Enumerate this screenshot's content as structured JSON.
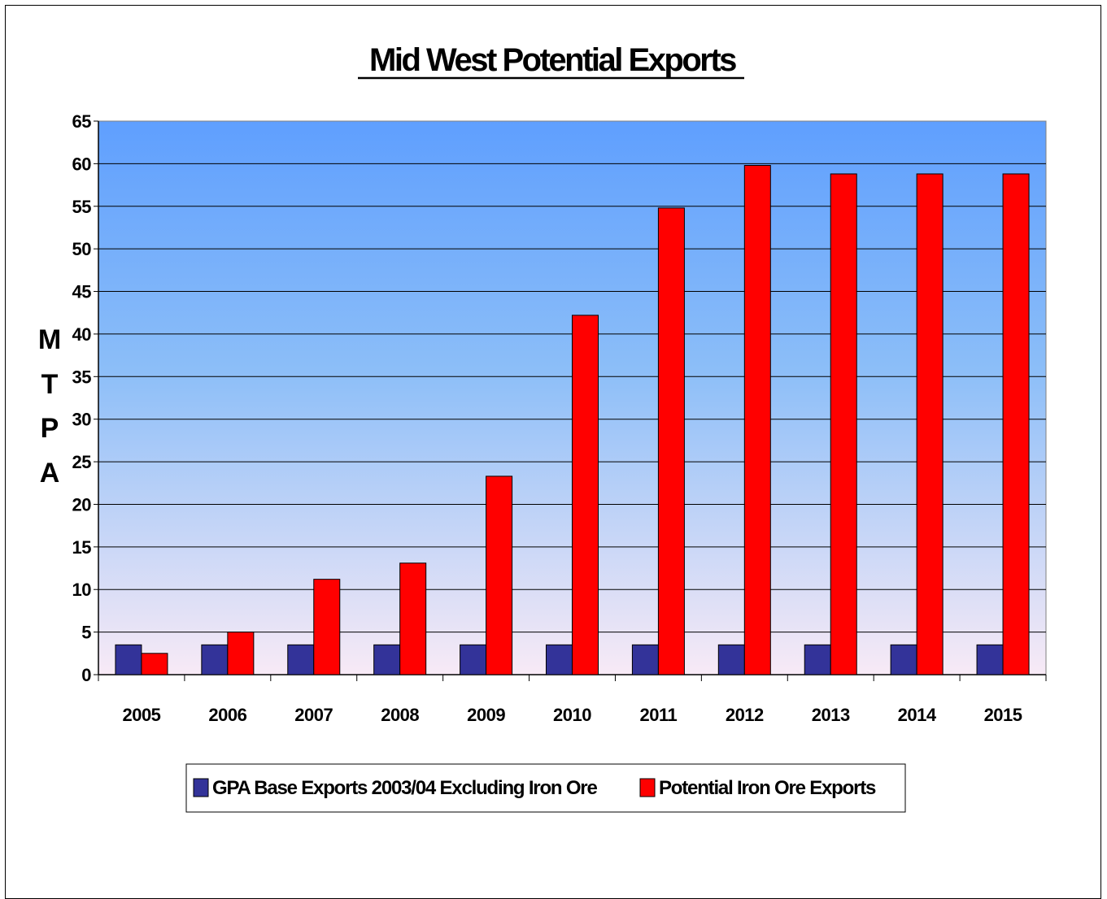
{
  "chart_data": {
    "type": "bar",
    "title": "Mid West Potential Exports",
    "ylabel": "MTPA",
    "ylabel_letters": [
      "M",
      "T",
      "P",
      "A"
    ],
    "xlabel": "",
    "categories": [
      "2005",
      "2006",
      "2007",
      "2008",
      "2009",
      "2010",
      "2011",
      "2012",
      "2013",
      "2014",
      "2015"
    ],
    "series": [
      {
        "name": "GPA Base Exports 2003/04 Excluding Iron Ore",
        "color": "#333399",
        "values": [
          3.5,
          3.5,
          3.5,
          3.5,
          3.5,
          3.5,
          3.5,
          3.5,
          3.5,
          3.5,
          3.5
        ]
      },
      {
        "name": "Potential Iron Ore Exports",
        "color": "#ff0000",
        "values": [
          2.5,
          5,
          11.2,
          13.1,
          23.3,
          42.2,
          54.8,
          59.8,
          58.8,
          58.8,
          58.8
        ]
      }
    ],
    "ylim": [
      0,
      65
    ],
    "yticks": [
      0,
      5,
      10,
      15,
      20,
      25,
      30,
      35,
      40,
      45,
      50,
      55,
      60,
      65
    ],
    "grid": true,
    "legend_position": "bottom",
    "background_gradient": [
      "#5f9ffe",
      "#f8eaf6"
    ]
  }
}
